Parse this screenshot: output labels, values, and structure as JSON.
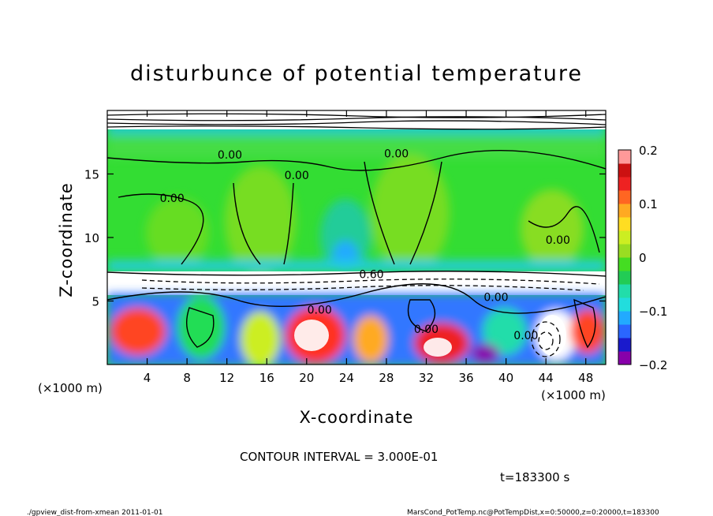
{
  "chart_data": {
    "type": "heatmap",
    "title": "disturbunce of potential temperature",
    "xlabel": "X-coordinate",
    "ylabel": "Z-coordinate",
    "x_unit_left": "(×1000 m)",
    "x_unit_right": "(×1000 m)",
    "x_ticks": [
      "4",
      "8",
      "12",
      "16",
      "20",
      "24",
      "28",
      "32",
      "36",
      "40",
      "44",
      "48"
    ],
    "x_tick_values": [
      4,
      8,
      12,
      16,
      20,
      24,
      28,
      32,
      36,
      40,
      44,
      48
    ],
    "y_ticks": [
      "5",
      "10",
      "15"
    ],
    "y_tick_values": [
      5,
      10,
      15
    ],
    "xlim": [
      0,
      50
    ],
    "ylim": [
      0,
      20
    ],
    "colorbar": {
      "ticks": [
        "0.2",
        "0.1",
        "0",
        "−0.1",
        "−0.2"
      ],
      "tick_values": [
        0.2,
        0.1,
        0,
        -0.1,
        -0.2
      ],
      "range": [
        -0.2,
        0.2
      ],
      "colors": [
        "#8800aa",
        "#1a1acc",
        "#2a66ff",
        "#22aaff",
        "#22dddd",
        "#22ddaa",
        "#22cc55",
        "#44dd22",
        "#99dd22",
        "#ccee22",
        "#ffdd22",
        "#ffaa22",
        "#ff6622",
        "#ee2222",
        "#cc1111",
        "#ff9999"
      ]
    },
    "contour_labels": [
      {
        "text": "0.00",
        "x": 12.3,
        "z": 16.2
      },
      {
        "text": "0.00",
        "x": 19.0,
        "z": 14.6
      },
      {
        "text": "0.00",
        "x": 29.0,
        "z": 16.3
      },
      {
        "text": "0.00",
        "x": 6.5,
        "z": 12.8
      },
      {
        "text": "0.00",
        "x": 45.2,
        "z": 9.5
      },
      {
        "text": "0.00",
        "x": 21.3,
        "z": 4.0
      },
      {
        "text": "0.00",
        "x": 39.0,
        "z": 5.0
      },
      {
        "text": "0.00",
        "x": 42.0,
        "z": 2.0
      },
      {
        "text": "0.60",
        "x": 26.5,
        "z": 6.8
      },
      {
        "text": "0.00",
        "x": 32.0,
        "z": 2.5
      }
    ],
    "contour_interval_text": "CONTOUR INTERVAL = 3.000E-01",
    "time_text": "t=183300 s"
  },
  "footer": {
    "left": "./gpview_dist-from-xmean  2011-01-01",
    "right": "MarsCond_PotTemp.nc@PotTempDist,x=0:50000,z=0:20000,t=183300"
  }
}
